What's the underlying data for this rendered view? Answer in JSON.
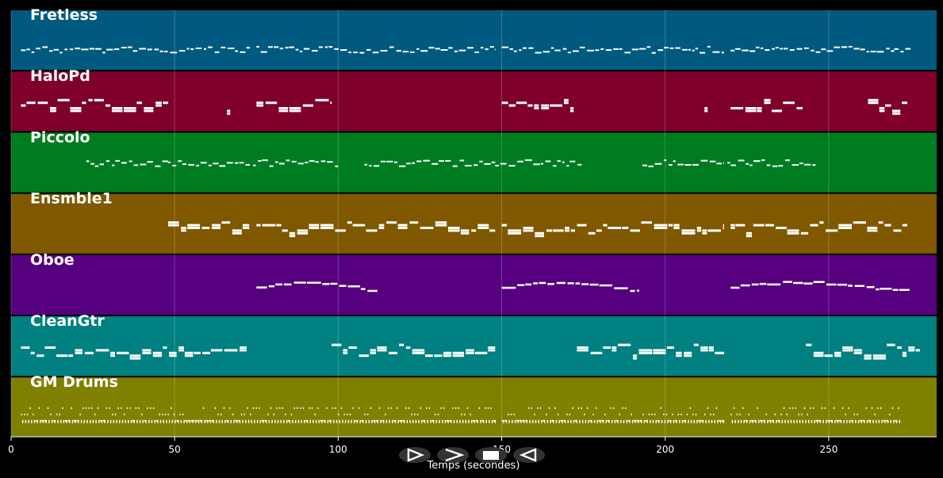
{
  "chart_data": {
    "type": "piano-roll",
    "xlabel": "Temps (secondes)",
    "xlim": [
      0,
      283
    ],
    "xticks": [
      0,
      50,
      100,
      150,
      200,
      250
    ],
    "grid": true,
    "tracks": [
      {
        "name": "Fretless",
        "color": "#005a80",
        "style": "line",
        "level": 0.65,
        "segments": [
          [
            3,
            73
          ],
          [
            75,
            148
          ],
          [
            150,
            218
          ],
          [
            220,
            270
          ],
          [
            270,
            275
          ]
        ]
      },
      {
        "name": "HaloPd",
        "color": "#7f002a",
        "style": "block",
        "level": 0.55,
        "segments": [
          [
            3,
            48
          ],
          [
            66,
            67
          ],
          [
            75,
            98
          ],
          [
            150,
            172
          ],
          [
            212,
            213
          ],
          [
            220,
            242
          ],
          [
            262,
            274
          ]
        ]
      },
      {
        "name": "Piccolo",
        "color": "#007c20",
        "style": "line",
        "level": 0.5,
        "segments": [
          [
            23,
            48
          ],
          [
            48,
            73
          ],
          [
            74,
            100
          ],
          [
            108,
            148
          ],
          [
            148,
            175
          ],
          [
            193,
            218
          ],
          [
            219,
            246
          ]
        ]
      },
      {
        "name": "Ensmble1",
        "color": "#7f5800",
        "style": "block",
        "level": 0.55,
        "segments": [
          [
            48,
            73
          ],
          [
            75,
            148
          ],
          [
            150,
            218
          ],
          [
            220,
            274
          ]
        ]
      },
      {
        "name": "Oboe",
        "color": "#560080",
        "style": "melody",
        "level": 0.5,
        "segments": [
          [
            75,
            112
          ],
          [
            150,
            192
          ],
          [
            220,
            275
          ]
        ]
      },
      {
        "name": "CleanGtr",
        "color": "#008080",
        "style": "block",
        "level": 0.55,
        "segments": [
          [
            3,
            72
          ],
          [
            98,
            148
          ],
          [
            173,
            218
          ],
          [
            243,
            278
          ]
        ]
      },
      {
        "name": "GM Drums",
        "color": "#7f7f00",
        "style": "drums",
        "level": 0.5,
        "segments": [
          [
            3,
            148
          ],
          [
            150,
            218
          ],
          [
            220,
            272
          ]
        ]
      }
    ]
  },
  "controls": {
    "play_icon": "play-outline-icon",
    "forward_icon": "chevron-right-icon",
    "stop_icon": "stop-icon",
    "back_icon": "rewind-icon"
  }
}
